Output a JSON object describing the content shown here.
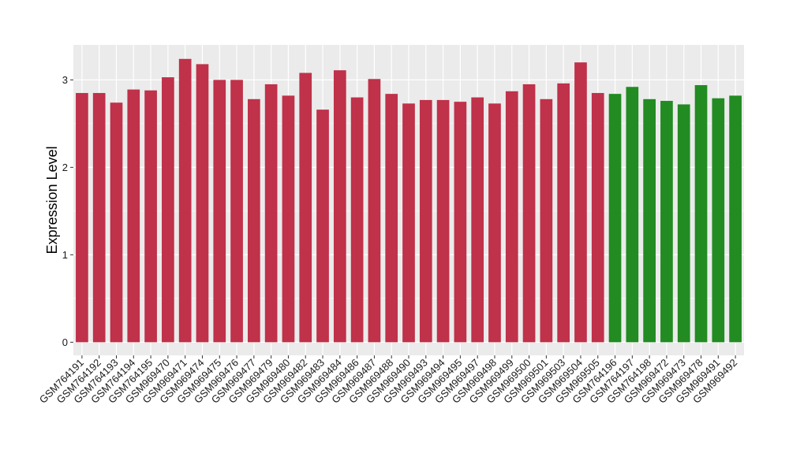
{
  "chart_data": {
    "type": "bar",
    "title": "",
    "xlabel": "",
    "ylabel": "Expression Level",
    "ylim": [
      -0.15,
      3.4
    ],
    "yticks": [
      0,
      1,
      2,
      3
    ],
    "grid": true,
    "panel_color": "#EBEBEB",
    "grid_color": "#FFFFFF",
    "categories": [
      "GSM764191",
      "GSM764192",
      "GSM764193",
      "GSM764194",
      "GSM764195",
      "GSM969470",
      "GSM969471",
      "GSM969474",
      "GSM969475",
      "GSM969476",
      "GSM969477",
      "GSM969479",
      "GSM969480",
      "GSM969482",
      "GSM969483",
      "GSM969484",
      "GSM969486",
      "GSM969487",
      "GSM969488",
      "GSM969490",
      "GSM969493",
      "GSM969494",
      "GSM969495",
      "GSM969497",
      "GSM969498",
      "GSM969499",
      "GSM969500",
      "GSM969501",
      "GSM969503",
      "GSM969504",
      "GSM969505",
      "GSM764196",
      "GSM764197",
      "GSM764198",
      "GSM969472",
      "GSM969473",
      "GSM969478",
      "GSM969491",
      "GSM969492"
    ],
    "values": [
      2.85,
      2.85,
      2.74,
      2.89,
      2.88,
      3.03,
      3.24,
      3.18,
      3.0,
      3.0,
      2.78,
      2.95,
      2.82,
      3.08,
      2.66,
      3.11,
      2.8,
      3.01,
      2.84,
      2.73,
      2.77,
      2.77,
      2.75,
      2.8,
      2.73,
      2.87,
      2.95,
      2.78,
      2.96,
      3.2,
      2.85,
      2.84,
      2.92,
      2.78,
      2.76,
      2.72,
      2.94,
      2.79,
      2.82
    ],
    "bar_colors": [
      "#C0314A",
      "#C0314A",
      "#C0314A",
      "#C0314A",
      "#C0314A",
      "#C0314A",
      "#C0314A",
      "#C0314A",
      "#C0314A",
      "#C0314A",
      "#C0314A",
      "#C0314A",
      "#C0314A",
      "#C0314A",
      "#C0314A",
      "#C0314A",
      "#C0314A",
      "#C0314A",
      "#C0314A",
      "#C0314A",
      "#C0314A",
      "#C0314A",
      "#C0314A",
      "#C0314A",
      "#C0314A",
      "#C0314A",
      "#C0314A",
      "#C0314A",
      "#C0314A",
      "#C0314A",
      "#C0314A",
      "#228B22",
      "#228B22",
      "#228B22",
      "#228B22",
      "#228B22",
      "#228B22",
      "#228B22",
      "#228B22"
    ]
  }
}
